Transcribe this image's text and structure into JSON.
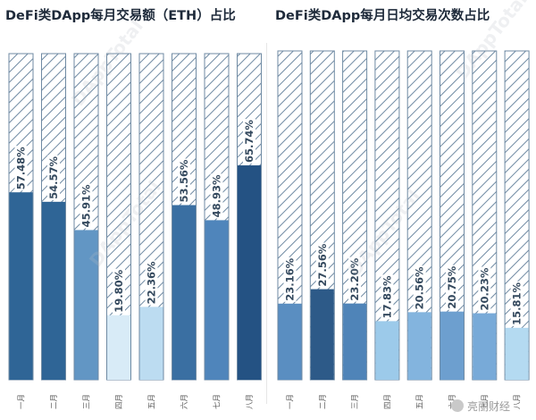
{
  "chart_data": [
    {
      "type": "bar",
      "title": "DeFi类DApp每月交易额（ETH）占比",
      "categories": [
        "一月",
        "二月",
        "三月",
        "四月",
        "五月",
        "六月",
        "七月",
        "八月"
      ],
      "values": [
        57.48,
        54.57,
        45.91,
        19.8,
        22.36,
        53.56,
        48.93,
        65.74
      ],
      "value_labels": [
        "57.48%",
        "54.57%",
        "45.91%",
        "19.80%",
        "22.36%",
        "53.56%",
        "48.93%",
        "65.74%"
      ],
      "ylim": [
        0,
        100
      ],
      "colors": [
        "#2f6596",
        "#2f6596",
        "#6296c4",
        "#d8ebf7",
        "#bcdcf1",
        "#3a6fa2",
        "#4f85bb",
        "#245283"
      ],
      "remainder_style": "hatched",
      "grid": false
    },
    {
      "type": "bar",
      "title": "DeFi类DApp每月日均交易次数占比",
      "categories": [
        "一月",
        "二月",
        "三月",
        "四月",
        "五月",
        "六月",
        "七月",
        "八月"
      ],
      "values": [
        23.16,
        27.56,
        23.2,
        17.83,
        20.56,
        20.75,
        20.23,
        15.81
      ],
      "value_labels": [
        "23.16%",
        "27.56%",
        "23.20%",
        "17.83%",
        "20.56%",
        "20.75%",
        "20.23%",
        "15.81%"
      ],
      "ylim": [
        0,
        100
      ],
      "colors": [
        "#5a8ec1",
        "#2d5a88",
        "#4f84b8",
        "#9ccaea",
        "#83b4de",
        "#6d9fcf",
        "#78aad8",
        "#b4daf1"
      ],
      "remainder_style": "hatched",
      "grid": false
    }
  ],
  "watermark": "DAppTotal",
  "footer_logo": "亮丽财经"
}
